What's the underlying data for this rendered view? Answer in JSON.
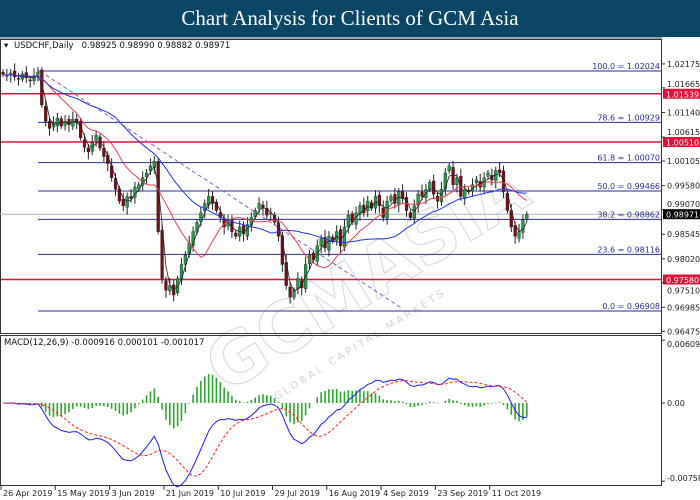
{
  "header": {
    "title": "Chart Analysis for Clients of GCM Asia"
  },
  "watermark": {
    "text": "GCMASIA",
    "subtext": "GLOBAL CAPITAL MARKETS"
  },
  "chart_data": [
    {
      "type": "candlestick",
      "symbol_label": "USDCHF,Daily",
      "ohlc_label": "0.98925 0.98990 0.98882 0.98971",
      "ylim": [
        0.96475,
        1.02175
      ],
      "y_ticks": [
        "1.02175",
        "1.01665",
        "1.01140",
        "1.00615",
        "1.00105",
        "0.99580",
        "0.99070",
        "0.98545",
        "0.98020",
        "0.97510",
        "0.96985",
        "0.96475"
      ],
      "x_ticks": [
        "26 Apr 2019",
        "15 May 2019",
        "3 Jun 2019",
        "21 Jun 2019",
        "10 Jul 2019",
        "29 Jul 2019",
        "16 Aug 2019",
        "4 Sep 2019",
        "23 Sep 2019",
        "11 Oct 2019"
      ],
      "closes": [
        1.0195,
        1.0192,
        1.0198,
        1.019,
        1.0185,
        1.0196,
        1.0188,
        1.0183,
        1.0192,
        1.02,
        1.013,
        1.0095,
        1.008,
        1.009,
        1.0102,
        1.0085,
        1.0095,
        1.0088,
        1.01,
        1.0092,
        1.006,
        1.004,
        1.003,
        1.005,
        1.0065,
        1.0038,
        1.002,
        1.0005,
        0.9975,
        0.995,
        0.9925,
        0.9915,
        0.9935,
        0.993,
        0.9955,
        0.996,
        0.9975,
        0.9985,
        1.0,
        1.001,
        0.986,
        0.976,
        0.9735,
        0.9745,
        0.9725,
        0.976,
        0.979,
        0.981,
        0.9835,
        0.986,
        0.988,
        0.99,
        0.992,
        0.9935,
        0.992,
        0.9905,
        0.989,
        0.987,
        0.988,
        0.986,
        0.985,
        0.987,
        0.9855,
        0.9875,
        0.989,
        0.9905,
        0.992,
        0.991,
        0.9895,
        0.99,
        0.988,
        0.985,
        0.979,
        0.9745,
        0.972,
        0.9735,
        0.976,
        0.974,
        0.979,
        0.981,
        0.98,
        0.983,
        0.9845,
        0.9825,
        0.985,
        0.984,
        0.986,
        0.983,
        0.987,
        0.9895,
        0.988,
        0.99,
        0.9915,
        0.99,
        0.9925,
        0.991,
        0.9935,
        0.9915,
        0.989,
        0.9925,
        0.9935,
        0.992,
        0.9945,
        0.993,
        0.9905,
        0.989,
        0.9915,
        0.994,
        0.9935,
        0.995,
        0.9965,
        0.994,
        0.9925,
        0.995,
        0.9985,
        1.0,
        0.996,
        0.9975,
        0.9935,
        0.995,
        0.9945,
        0.996,
        0.997,
        0.9955,
        0.9975,
        0.9985,
        0.997,
        0.999,
        0.9985,
        0.9945,
        0.9905,
        0.987,
        0.985,
        0.986,
        0.9885,
        0.9897
      ],
      "current_price": {
        "label": "0.98971",
        "value": 0.98971
      },
      "fibonacci": [
        {
          "label": "100.0 = 1.02024",
          "value": 1.02024
        },
        {
          "label": "78.6  = 1.00929",
          "value": 1.00929
        },
        {
          "label": "61.8 = 1.00070",
          "value": 1.0007
        },
        {
          "label": "50.0 = 0.99466",
          "value": 0.99466
        },
        {
          "label": "38.2 = 0.98862",
          "value": 0.98862
        },
        {
          "label": "23.6 = 0.98116",
          "value": 0.98116
        },
        {
          "label": "0.0 = 0.96908",
          "value": 0.96908
        }
      ],
      "support_resistance": [
        {
          "label": "1.01539",
          "value": 1.01539
        },
        {
          "label": "1.00510",
          "value": 1.0051
        },
        {
          "label": "0.97580",
          "value": 0.9758
        }
      ],
      "trendline": {
        "from": 1.0202,
        "to": 0.9695
      },
      "colors": {
        "bull": "#1e9e4a",
        "bear": "#7a0a14",
        "fib": "#2b2b9a",
        "sr": "#e0103a",
        "ma_fast": "#e84050",
        "ma_slow": "#2233ee",
        "trend": "#8a5cc8"
      }
    },
    {
      "type": "macd",
      "label": "MACD(12,26,9) -0.000916 0.000101 -0.001017",
      "ylim": [
        -0.00758,
        0.00609
      ],
      "y_ticks": [
        "0.00609",
        "0.00",
        "-0.00758"
      ],
      "colors": {
        "macd": "#1a1aff",
        "signal": "#ff2020",
        "hist": "#2fa52f"
      }
    }
  ]
}
